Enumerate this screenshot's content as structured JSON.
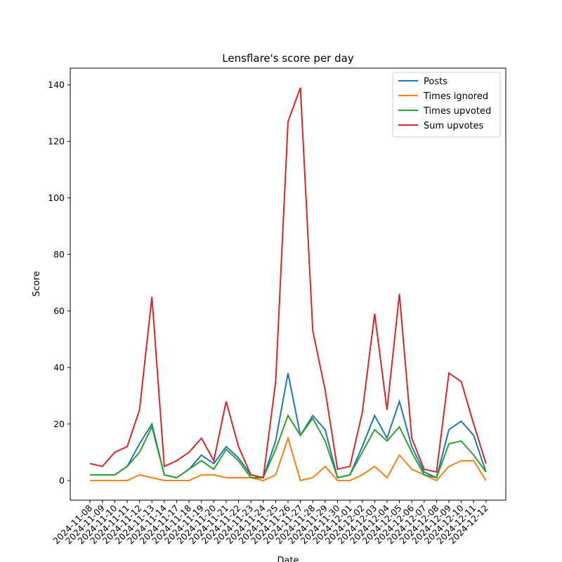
{
  "chart_data": {
    "type": "line",
    "title": "Lensflare's score per day",
    "xlabel": "Date",
    "ylabel": "Score",
    "categories": [
      "2024-11-08",
      "2024-11-09",
      "2024-11-10",
      "2024-11-11",
      "2024-11-12",
      "2024-11-13",
      "2024-11-14",
      "2024-11-17",
      "2024-11-18",
      "2024-11-19",
      "2024-11-20",
      "2024-11-21",
      "2024-11-22",
      "2024-11-23",
      "2024-11-24",
      "2024-11-25",
      "2024-11-26",
      "2024-11-27",
      "2024-11-28",
      "2024-11-29",
      "2024-11-30",
      "2024-12-01",
      "2024-12-02",
      "2024-12-03",
      "2024-12-04",
      "2024-12-05",
      "2024-12-06",
      "2024-12-07",
      "2024-12-08",
      "2024-12-09",
      "2024-12-10",
      "2024-12-11",
      "2024-12-12"
    ],
    "series": [
      {
        "name": "Posts",
        "color": "#1f77b4",
        "values": [
          2,
          2,
          2,
          5,
          13,
          20,
          2,
          1,
          4,
          9,
          6,
          12,
          8,
          2,
          1,
          14,
          38,
          16,
          23,
          18,
          1,
          2,
          12,
          23,
          15,
          28,
          12,
          3,
          1,
          18,
          21,
          16,
          3
        ]
      },
      {
        "name": "Times ignored",
        "color": "#ff7f0e",
        "values": [
          0,
          0,
          0,
          0,
          2,
          1,
          0,
          0,
          0,
          2,
          2,
          1,
          1,
          1,
          0,
          2,
          15,
          0,
          1,
          5,
          0,
          0,
          2,
          5,
          1,
          9,
          4,
          2,
          0,
          5,
          7,
          7,
          0
        ]
      },
      {
        "name": "Times upvoted",
        "color": "#2ca02c",
        "values": [
          2,
          2,
          2,
          5,
          10,
          19,
          2,
          1,
          4,
          7,
          4,
          11,
          7,
          1,
          1,
          11,
          23,
          16,
          22,
          14,
          1,
          2,
          10,
          18,
          14,
          19,
          10,
          2,
          1,
          13,
          14,
          9,
          3
        ]
      },
      {
        "name": "Sum upvotes",
        "color": "#d62728",
        "values": [
          6,
          5,
          10,
          12,
          25,
          65,
          5,
          7,
          10,
          15,
          7,
          28,
          12,
          2,
          1,
          35,
          127,
          139,
          53,
          32,
          4,
          5,
          24,
          59,
          25,
          66,
          15,
          4,
          3,
          38,
          35,
          20,
          6
        ]
      }
    ],
    "ylim": [
      -6.95,
      145.9
    ],
    "yticks": [
      0,
      20,
      40,
      60,
      80,
      100,
      120,
      140
    ],
    "legend": "upper right"
  }
}
